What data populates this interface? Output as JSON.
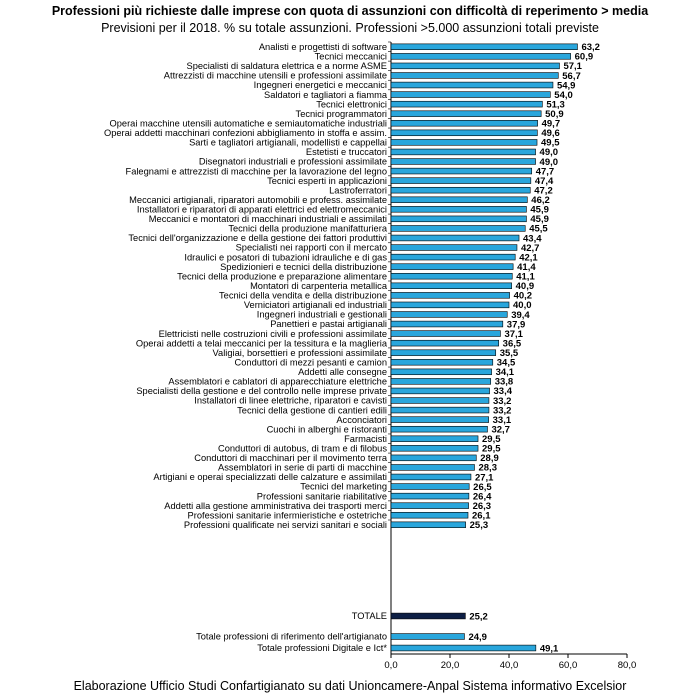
{
  "title": "Professioni più richieste dalle imprese con quota di assunzioni con difficoltà di reperimento > media",
  "subtitle": "Previsioni per il 2018. % su totale assunzioni. Professioni >5.000 assunzioni totali previste",
  "source": "Elaborazione Ufficio Studi Confartigianato su dati Unioncamere-Anpal Sistema informativo Excelsior",
  "colors": {
    "bar": "#29a6dc",
    "total_bar": "#0e1f45",
    "bar_stroke": "#000000"
  },
  "chart_data": {
    "type": "bar",
    "orientation": "horizontal",
    "xlim": [
      0,
      80
    ],
    "xticks": [
      "0,0",
      "20,0",
      "40,0",
      "60,0",
      "80,0"
    ],
    "grid": false,
    "categories": [
      "Analisti e progettisti di software",
      "Tecnici meccanici",
      "Specialisti di saldatura elettrica e a norme ASME",
      "Attrezzisti di macchine utensili e professioni assimilate",
      "Ingegneri energetici e meccanici",
      "Saldatori e tagliatori a fiamma",
      "Tecnici elettronici",
      "Tecnici programmatori",
      "Operai macchine utensili automatiche e semiautomatiche industriali",
      "Operai addetti macchinari confezioni abbigliamento in stoffa e assim.",
      "Sarti e tagliatori artigianali, modellisti e cappellai",
      "Estetisti e truccatori",
      "Disegnatori industriali e professioni assimilate",
      "Falegnami e attrezzisti di macchine per la lavorazione del legno",
      "Tecnici esperti in applicazioni",
      "Lastroferratori",
      "Meccanici artigianali, riparatori automobili e profess. assimilate",
      "Installatori e riparatori di apparati elettrici ed elettromeccanici",
      "Meccanici e montatori di macchinari industriali e assimilati",
      "Tecnici della produzione manifatturiera",
      "Tecnici dell'organizzazione e della gestione dei fattori produttivi",
      "Specialisti nei rapporti con il mercato",
      "Idraulici e posatori di tubazioni idrauliche e di gas",
      "Spedizionieri e tecnici della distribuzione",
      "Tecnici della produzione e preparazione alimentare",
      "Montatori di carpenteria metallica",
      "Tecnici della vendita e della distribuzione",
      "Verniciatori artigianali ed industriali",
      "Ingegneri industriali e gestionali",
      "Panettieri e pastai artigianali",
      "Elettricisti nelle costruzioni civili e professioni assimilate",
      "Operai addetti a telai meccanici per la tessitura e la maglieria",
      "Valigiai, borsettieri e professioni assimilate",
      "Conduttori di mezzi pesanti e camion",
      "Addetti alle consegne",
      "Assemblatori e cablatori di apparecchiature elettriche",
      "Specialisti della gestione e del controllo nelle imprese private",
      "Installatori di linee elettriche, riparatori e cavisti",
      "Tecnici della gestione di cantieri edili",
      "Acconciatori",
      "Cuochi in alberghi e ristoranti",
      "Farmacisti",
      "Conduttori di autobus, di tram e di filobus",
      "Conduttori di macchinari per il movimento terra",
      "Assemblatori in serie di parti di macchine",
      "Artigiani e operai specializzati delle calzature e assimilati",
      "Tecnici del marketing",
      "Professioni sanitarie riabilitative",
      "Addetti alla gestione amministrativa dei trasporti merci",
      "Professioni sanitarie infermieristiche e ostetriche",
      "Professioni qualificate nei servizi sanitari e sociali"
    ],
    "values": [
      63.2,
      60.9,
      57.1,
      56.7,
      54.9,
      54.0,
      51.3,
      50.9,
      49.7,
      49.6,
      49.5,
      49.0,
      49.0,
      47.7,
      47.4,
      47.2,
      46.2,
      45.9,
      45.9,
      45.5,
      43.4,
      42.7,
      42.1,
      41.4,
      41.1,
      40.9,
      40.2,
      40.0,
      39.4,
      37.9,
      37.1,
      36.5,
      35.5,
      34.5,
      34.1,
      33.8,
      33.4,
      33.2,
      33.2,
      33.1,
      32.7,
      29.5,
      29.5,
      28.9,
      28.3,
      27.1,
      26.5,
      26.4,
      26.3,
      26.1,
      25.3
    ],
    "value_labels": [
      "63,2",
      "60,9",
      "57,1",
      "56,7",
      "54,9",
      "54,0",
      "51,3",
      "50,9",
      "49,7",
      "49,6",
      "49,5",
      "49,0",
      "49,0",
      "47,7",
      "47,4",
      "47,2",
      "46,2",
      "45,9",
      "45,9",
      "45,5",
      "43,4",
      "42,7",
      "42,1",
      "41,4",
      "41,1",
      "40,9",
      "40,2",
      "40,0",
      "39,4",
      "37,9",
      "37,1",
      "36,5",
      "35,5",
      "34,5",
      "34,1",
      "33,8",
      "33,4",
      "33,2",
      "33,2",
      "33,1",
      "32,7",
      "29,5",
      "29,5",
      "28,9",
      "28,3",
      "27,1",
      "26,5",
      "26,4",
      "26,3",
      "26,1",
      "25,3"
    ],
    "total": {
      "label": "TOTALE",
      "value": 25.2,
      "value_label": "25,2"
    },
    "extra": [
      {
        "label": "Totale professioni di riferimento dell'artigianato",
        "value": 24.9,
        "value_label": "24,9"
      },
      {
        "label": "Totale professioni Digitale e Ict*",
        "value": 49.1,
        "value_label": "49,1"
      }
    ]
  }
}
